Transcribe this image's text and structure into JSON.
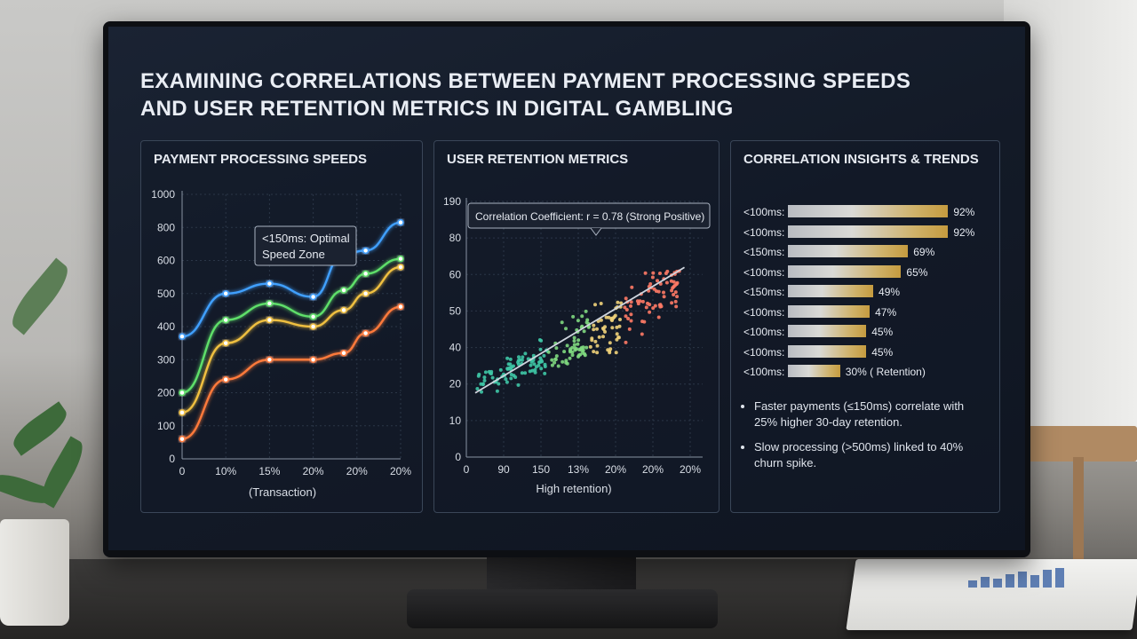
{
  "title": {
    "line1": "EXAMINING CORRELATIONS BETWEEN PAYMENT PROCESSING SPEEDS",
    "line2": "AND USER RETENTION METRICS IN DIGITAL GAMBLING"
  },
  "colors": {
    "blue": "#3fa0ff",
    "green": "#5fe06a",
    "yellow": "#f0c040",
    "orange": "#ff7a3a",
    "accent_gold": "#c59b3f"
  },
  "chart_data": [
    {
      "type": "line",
      "title": "PAYMENT PROCESSING SPEEDS",
      "xlabel": "(Transaction)",
      "ylabel": "",
      "x_ticks": [
        "0",
        "10%",
        "15%",
        "20%",
        "20%",
        "20%"
      ],
      "y_ticks": [
        0,
        100,
        200,
        300,
        400,
        500,
        600,
        800,
        1000
      ],
      "annotation": {
        "line1": "<150ms: Optimal",
        "line2": "Speed Zone"
      },
      "x": [
        0,
        1,
        2,
        3,
        3.7,
        4.2,
        5
      ],
      "series": [
        {
          "color": "#3fa0ff",
          "values": [
            370,
            500,
            530,
            490,
            640,
            660,
            830
          ]
        },
        {
          "color": "#5fe06a",
          "values": [
            200,
            420,
            470,
            430,
            510,
            560,
            610
          ]
        },
        {
          "color": "#f0c040",
          "values": [
            140,
            350,
            420,
            400,
            450,
            500,
            580
          ]
        },
        {
          "color": "#ff7a3a",
          "values": [
            60,
            240,
            300,
            300,
            320,
            380,
            460
          ]
        }
      ],
      "ylim": [
        0,
        1000
      ],
      "grid": true
    },
    {
      "type": "scatter",
      "title": "USER RETENTION METRICS",
      "xlabel": "High retention)",
      "x_ticks": [
        "0",
        "90",
        "150",
        "13%",
        "20%",
        "20%",
        "20%"
      ],
      "y_ticks": [
        0,
        10,
        20,
        40,
        50,
        60,
        80,
        190
      ],
      "annotation": "Correlation Coefficient: r = 0.78 (Strong Positive)",
      "trend": {
        "x": [
          0,
          6
        ],
        "y": [
          20,
          60
        ]
      },
      "xlim": [
        0,
        6.5
      ],
      "grid": true
    },
    {
      "type": "bar",
      "title": "CORRELATION INSIGHTS & TRENDS",
      "orientation": "horizontal",
      "categories": [
        "<100ms:",
        "<100ms:",
        "<150ms:",
        "<100ms:",
        "<150ms:",
        "<100ms:",
        "<100ms:",
        "<100ms:",
        "<100ms:"
      ],
      "values": [
        92,
        92,
        69,
        65,
        49,
        47,
        45,
        45,
        30
      ],
      "value_labels": [
        "92%",
        "92%",
        "69%",
        "65%",
        "49%",
        "47%",
        "45%",
        "45%",
        "30% ( Retention)"
      ],
      "xlim": [
        0,
        100
      ]
    }
  ],
  "insights": [
    "Faster payments (≤150ms) correlate with 25% higher 30-day retention.",
    "Slow processing (>500ms) linked to 40% churn spike."
  ]
}
